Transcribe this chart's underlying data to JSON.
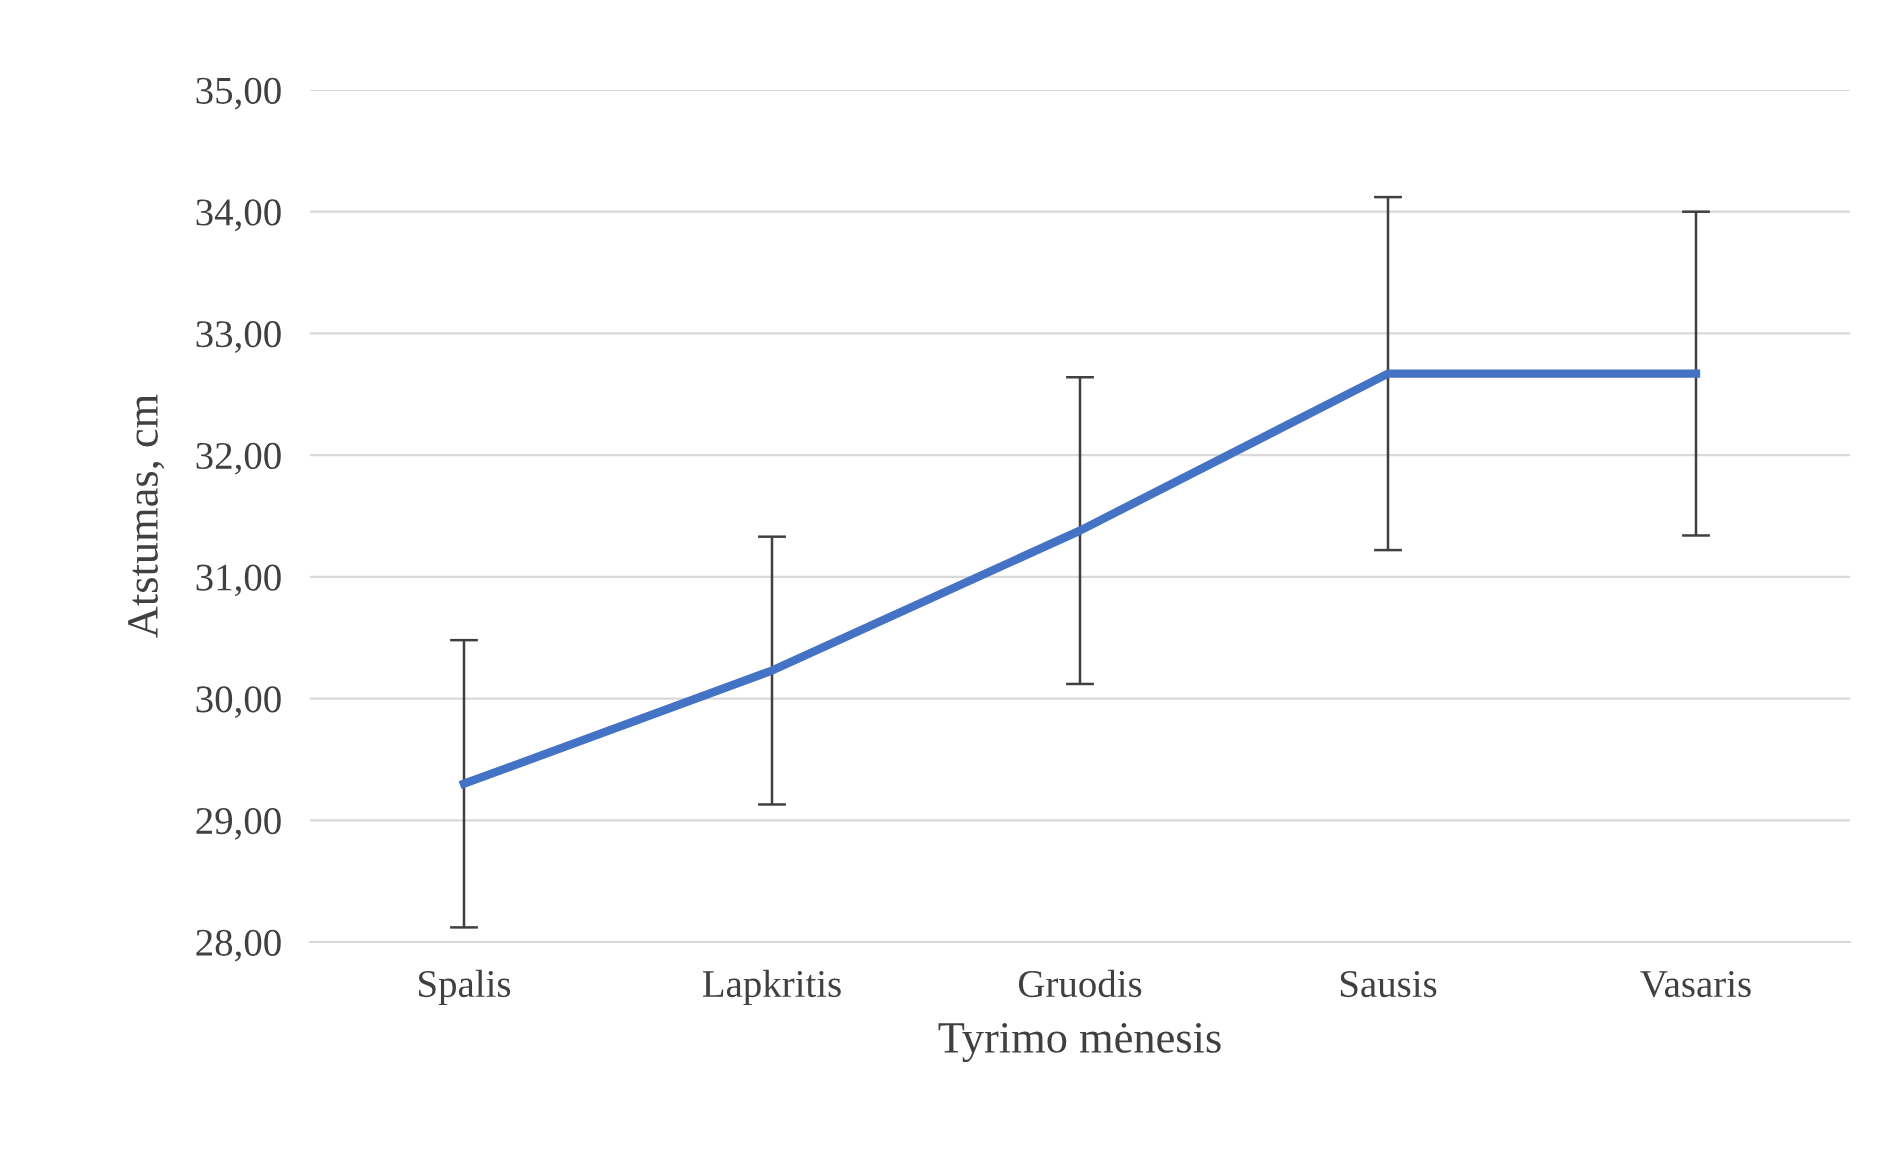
{
  "chart_data": {
    "type": "line",
    "xlabel": "Tyrimo mėnesis",
    "ylabel": "Atstumas, cm",
    "categories": [
      "Spalis",
      "Lapkritis",
      "Gruodis",
      "Sausis",
      "Vasaris"
    ],
    "values": [
      29.3,
      30.23,
      31.38,
      32.67,
      32.67
    ],
    "errors": [
      1.18,
      1.1,
      1.26,
      1.45,
      1.33
    ],
    "color": "#4472c4",
    "ylim": [
      28,
      35
    ],
    "yticks": [
      {
        "value": 28,
        "label": "28,00"
      },
      {
        "value": 29,
        "label": "29,00"
      },
      {
        "value": 30,
        "label": "30,00"
      },
      {
        "value": 31,
        "label": "31,00"
      },
      {
        "value": 32,
        "label": "32,00"
      },
      {
        "value": 33,
        "label": "33,00"
      },
      {
        "value": 34,
        "label": "34,00"
      },
      {
        "value": 35,
        "label": "35,00"
      }
    ],
    "grid": "y",
    "marker": "none",
    "line_style": "solid"
  }
}
